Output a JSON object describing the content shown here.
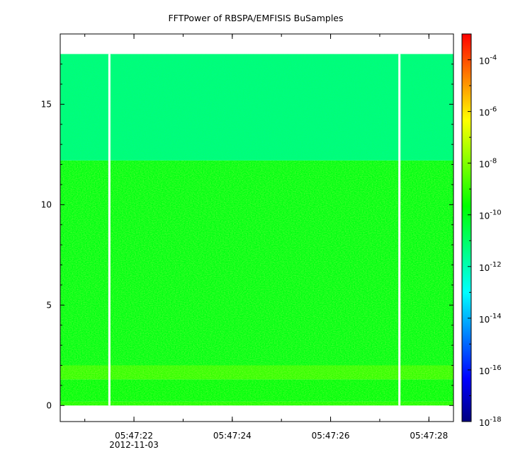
{
  "chart_data": {
    "type": "heatmap",
    "title": "FFTPower of RBSPA/EMFISIS  BuSamples",
    "xlabel": "",
    "ylabel": "",
    "x_range": [
      "2012-11-03T05:47:20.5",
      "2012-11-03T05:47:28.5"
    ],
    "x_ticks": [
      "05:47:22",
      "05:47:24",
      "05:47:26",
      "05:47:28"
    ],
    "x_tick_date": "2012-11-03",
    "ylim": [
      -0.8,
      18.5
    ],
    "y_ticks": [
      0,
      5,
      10,
      15
    ],
    "color_scale": "log",
    "color_range": [
      1e-18,
      0.001
    ],
    "colorbar_ticks": [
      "10-4",
      "10-6",
      "10-8",
      "10-10",
      "10-12",
      "10-14",
      "10-16",
      "10-18"
    ],
    "colorbar_values": [
      -4,
      -6,
      -8,
      -10,
      -12,
      -14,
      -16,
      -18
    ],
    "data_y_extent": [
      0,
      17.5
    ],
    "data_gaps_time": [
      "05:47:21.5",
      "05:47:27.4"
    ],
    "spectral_bands": [
      {
        "y_from": 0.0,
        "y_to": 0.2,
        "log10_power": -9.3
      },
      {
        "y_from": 0.2,
        "y_to": 1.3,
        "log10_power": -9.8
      },
      {
        "y_from": 1.3,
        "y_to": 2.0,
        "log10_power": -9.0
      },
      {
        "y_from": 2.0,
        "y_to": 12.2,
        "log10_power": -9.9
      },
      {
        "y_from": 12.2,
        "y_to": 17.5,
        "log10_power": -11.2
      }
    ],
    "colormap": [
      "#00007f",
      "#0000ff",
      "#0080ff",
      "#00ffff",
      "#00ff80",
      "#00ff00",
      "#80ff00",
      "#ffff00",
      "#ff8000",
      "#ff0000"
    ]
  }
}
